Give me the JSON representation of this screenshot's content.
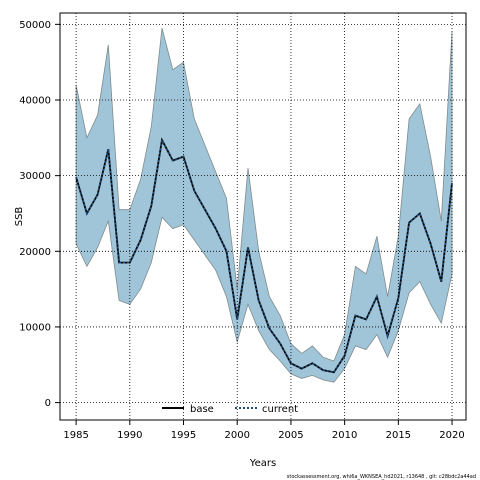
{
  "chart_data": {
    "type": "area",
    "xlabel": "Years",
    "ylabel": "SSB",
    "xlim": [
      1983.5,
      2021.3
    ],
    "ylim": [
      -2300,
      51500
    ],
    "xticks": [
      1985,
      1990,
      1995,
      2000,
      2005,
      2010,
      2015,
      2020
    ],
    "yticks": [
      0,
      10000,
      20000,
      30000,
      40000,
      50000
    ],
    "grid": true,
    "legend_position": "bottom-center",
    "x": [
      1985,
      1986,
      1987,
      1988,
      1989,
      1990,
      1991,
      1992,
      1993,
      1994,
      1995,
      1996,
      1997,
      1998,
      1999,
      2000,
      2001,
      2002,
      2003,
      2004,
      2005,
      2006,
      2007,
      2008,
      2009,
      2010,
      2011,
      2012,
      2013,
      2014,
      2015,
      2016,
      2017,
      2018,
      2019,
      2020
    ],
    "band": {
      "fill": "#a0c4d8",
      "edge": "#7f8c8d",
      "upper": [
        42000,
        35000,
        38000,
        47300,
        25500,
        25500,
        29500,
        36500,
        49500,
        44000,
        45000,
        37500,
        34000,
        30500,
        27000,
        15000,
        31000,
        20000,
        14000,
        11500,
        7800,
        6500,
        7500,
        6000,
        5500,
        9000,
        18000,
        17000,
        22000,
        14000,
        22000,
        37500,
        39500,
        32500,
        24000,
        49000
      ],
      "lower": [
        21000,
        18000,
        20500,
        24000,
        13500,
        13000,
        15000,
        18500,
        24500,
        23000,
        23500,
        21500,
        19500,
        17500,
        14000,
        8000,
        13000,
        9500,
        7000,
        5500,
        3800,
        3200,
        3600,
        3000,
        2700,
        4500,
        7500,
        7000,
        9000,
        6000,
        9500,
        14500,
        16000,
        13000,
        10500,
        17000
      ]
    },
    "series": [
      {
        "name": "base",
        "color": "#000000",
        "style": "solid",
        "values": [
          29800,
          25000,
          27500,
          33500,
          18500,
          18500,
          21500,
          26000,
          34700,
          32000,
          32500,
          28000,
          25500,
          23000,
          20000,
          11000,
          20500,
          13500,
          9800,
          7800,
          5200,
          4500,
          5200,
          4300,
          4000,
          6200,
          11500,
          11000,
          14000,
          8800,
          13800,
          23800,
          25000,
          21000,
          16000,
          29000
        ]
      },
      {
        "name": "current",
        "color": "#1f4e79",
        "style": "dotted",
        "values": [
          29800,
          25000,
          27500,
          33500,
          18500,
          18500,
          21500,
          26000,
          34700,
          32000,
          32500,
          28000,
          25500,
          23000,
          20000,
          11000,
          20500,
          13500,
          9800,
          7800,
          5200,
          4500,
          5200,
          4300,
          4000,
          6200,
          11500,
          11000,
          14000,
          8800,
          13800,
          23800,
          25000,
          21000,
          16000,
          29000
        ]
      }
    ]
  },
  "footer": {
    "footnote": "stockassessment.org, whi6a_WKNSEA_hd2021, r13648 , git: c28bdc2a44ad"
  }
}
